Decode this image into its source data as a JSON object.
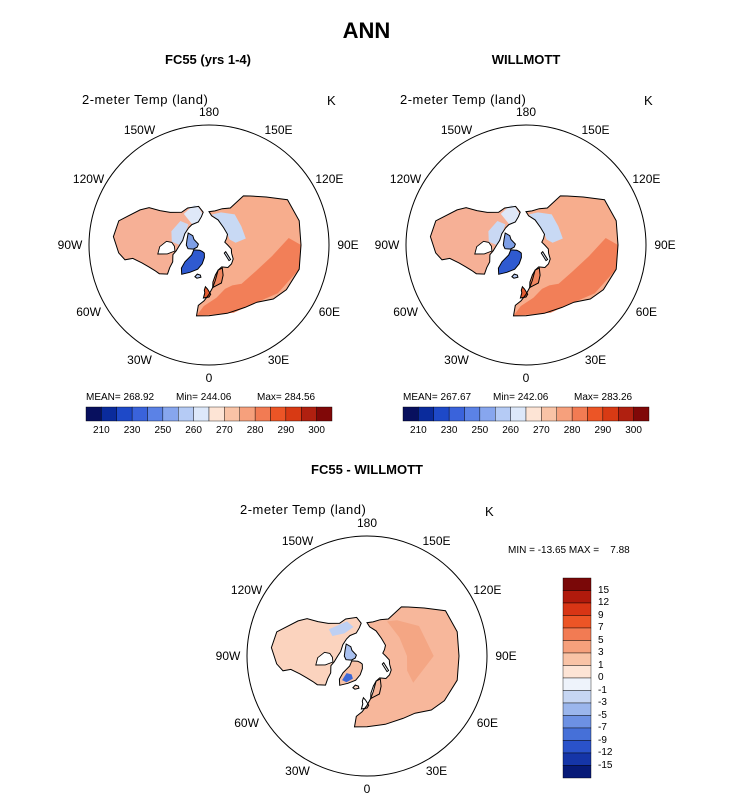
{
  "title": "ANN",
  "panels": [
    {
      "title": "FC55 (yrs 1-4)",
      "label": "2-meter Temp (land)",
      "units": "K",
      "lon_labels": [
        "180",
        "150E",
        "120E",
        "90E",
        "60E",
        "30E",
        "0",
        "30W",
        "60W",
        "90W",
        "120W",
        "150W"
      ],
      "stats": {
        "mean": "MEAN= 268.92",
        "min": "Min= 244.06",
        "max": "Max= 284.56"
      },
      "colorbar": {
        "colors": [
          "#08105e",
          "#0a2b9c",
          "#1e49c8",
          "#3a63db",
          "#5b82e6",
          "#87a6ee",
          "#b5cbf5",
          "#dde8fa",
          "#fde4d5",
          "#f9c3a6",
          "#f6a07c",
          "#f27b53",
          "#ec5526",
          "#d83a14",
          "#b02010",
          "#800808"
        ],
        "ticks": [
          "210",
          "230",
          "250",
          "260",
          "270",
          "280",
          "290",
          "300"
        ]
      }
    },
    {
      "title": "WILLMOTT",
      "label": "2-meter Temp (land)",
      "units": "K",
      "lon_labels": [
        "180",
        "150E",
        "120E",
        "90E",
        "60E",
        "30E",
        "0",
        "30W",
        "60W",
        "90W",
        "120W",
        "150W"
      ],
      "stats": {
        "mean": "MEAN= 267.67",
        "min": "Min= 242.06",
        "max": "Max= 283.26"
      },
      "colorbar": {
        "colors": [
          "#08105e",
          "#0a2b9c",
          "#1e49c8",
          "#3a63db",
          "#5b82e6",
          "#87a6ee",
          "#b5cbf5",
          "#dde8fa",
          "#fde4d5",
          "#f9c3a6",
          "#f6a07c",
          "#f27b53",
          "#ec5526",
          "#d83a14",
          "#b02010",
          "#800808"
        ],
        "ticks": [
          "210",
          "230",
          "250",
          "260",
          "270",
          "280",
          "290",
          "300"
        ]
      }
    }
  ],
  "diff_panel": {
    "title": "FC55 - WILLMOTT",
    "label": "2-meter Temp (land)",
    "units": "K",
    "lon_labels": [
      "180",
      "150E",
      "120E",
      "90E",
      "60E",
      "30E",
      "0",
      "30W",
      "60W",
      "90W",
      "120W",
      "150W"
    ],
    "minmax": "MIN = -13.65 MAX =    7.88",
    "colorbar": {
      "colors": [
        "#7a0808",
        "#b01a0c",
        "#d83515",
        "#ec5526",
        "#f27b53",
        "#f6a07c",
        "#f9c3a6",
        "#fde4d5",
        "#eef3fb",
        "#c6d6f3",
        "#9bb6ec",
        "#6d91e3",
        "#4670d8",
        "#2a52ca",
        "#1535a8",
        "#071a78"
      ],
      "ticks": [
        "15",
        "12",
        "9",
        "7",
        "5",
        "3",
        "1",
        "0",
        "-1",
        "-3",
        "-5",
        "-7",
        "-9",
        "-12",
        "-15"
      ]
    }
  },
  "chart_data": [
    {
      "type": "heatmap",
      "projection": "north polar stereographic",
      "title": "FC55 (yrs 1-4)",
      "variable": "2-meter Temp (land)",
      "units": "K",
      "mean": 268.92,
      "min": 244.06,
      "max": 284.56,
      "levels": [
        210,
        230,
        250,
        260,
        270,
        280,
        290,
        300
      ]
    },
    {
      "type": "heatmap",
      "projection": "north polar stereographic",
      "title": "WILLMOTT",
      "variable": "2-meter Temp (land)",
      "units": "K",
      "mean": 267.67,
      "min": 242.06,
      "max": 283.26,
      "levels": [
        210,
        230,
        250,
        260,
        270,
        280,
        290,
        300
      ]
    },
    {
      "type": "heatmap",
      "projection": "north polar stereographic",
      "title": "FC55 - WILLMOTT",
      "variable": "2-meter Temp (land)",
      "units": "K",
      "min": -13.65,
      "max": 7.88,
      "levels": [
        -15,
        -12,
        -9,
        -7,
        -5,
        -3,
        -1,
        0,
        1,
        3,
        5,
        7,
        9,
        12,
        15
      ]
    }
  ]
}
